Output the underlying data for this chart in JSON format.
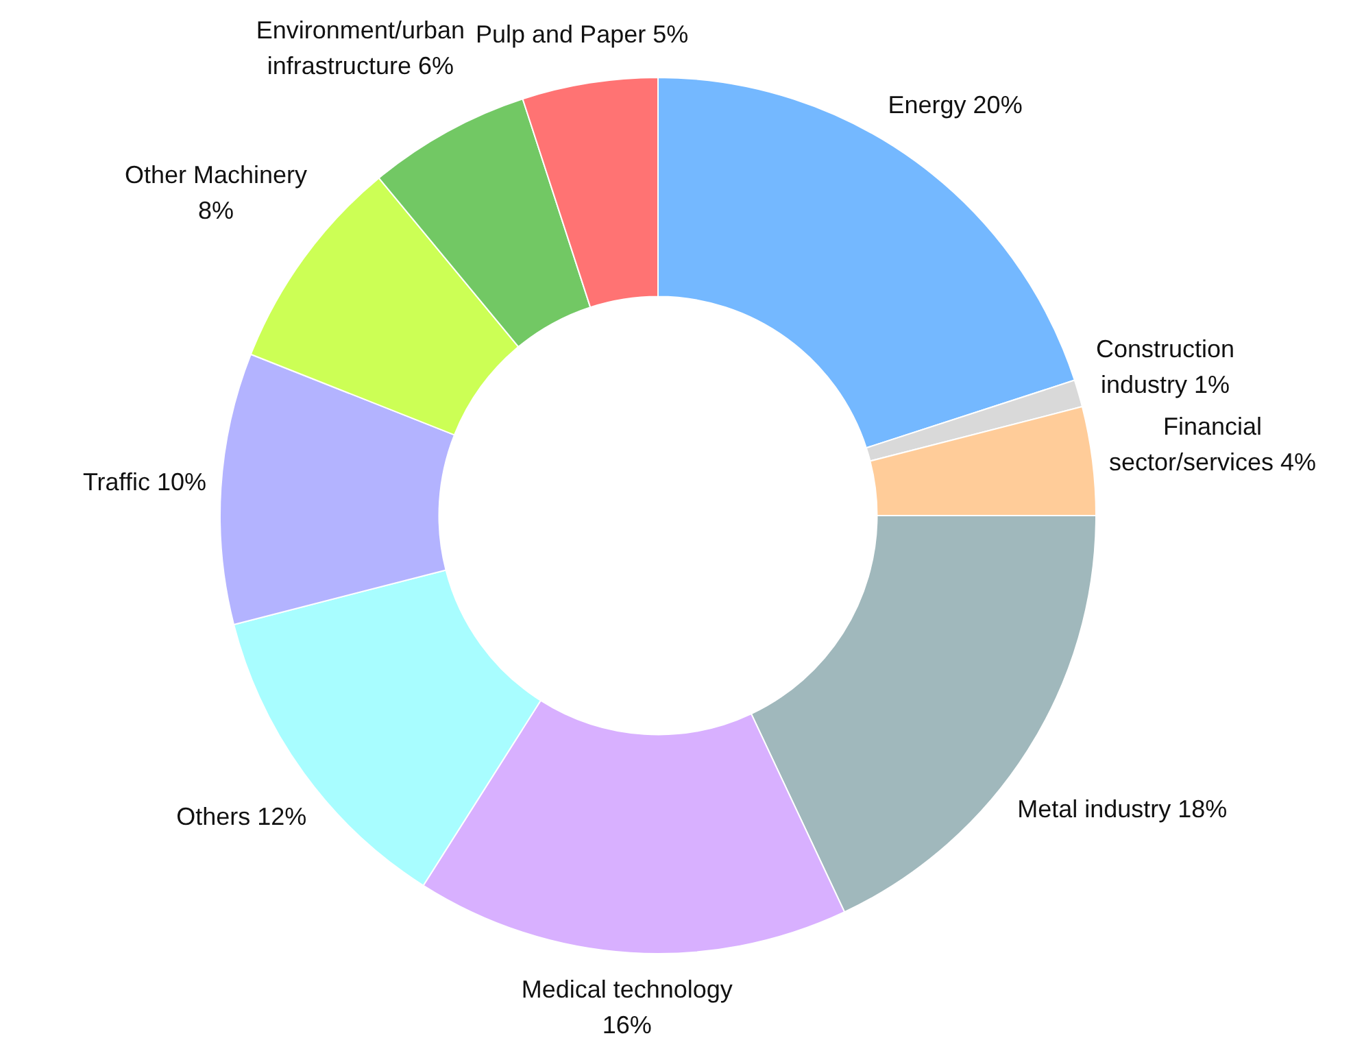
{
  "chart_data": {
    "type": "donut",
    "categories": [
      "Energy",
      "Construction industry",
      "Financial sector/services",
      "Metal industry",
      "Medical technology",
      "Others",
      "Traffic",
      "Other Machinery",
      "Environment/urban infrastructure",
      "Pulp and Paper"
    ],
    "values": [
      20,
      1,
      4,
      18,
      16,
      12,
      10,
      8,
      6,
      5
    ],
    "value_labels": [
      "20%",
      "1%",
      "4%",
      "18%",
      "16%",
      "12%",
      "10%",
      "8%",
      "6%",
      "5%"
    ],
    "colors": [
      "#74b8ff",
      "#d9d9d9",
      "#ffcc99",
      "#a0b8bc",
      "#d8b0ff",
      "#a8fdff",
      "#b3b3ff",
      "#ccff55",
      "#72c864",
      "#ff7373"
    ],
    "legend": false
  }
}
